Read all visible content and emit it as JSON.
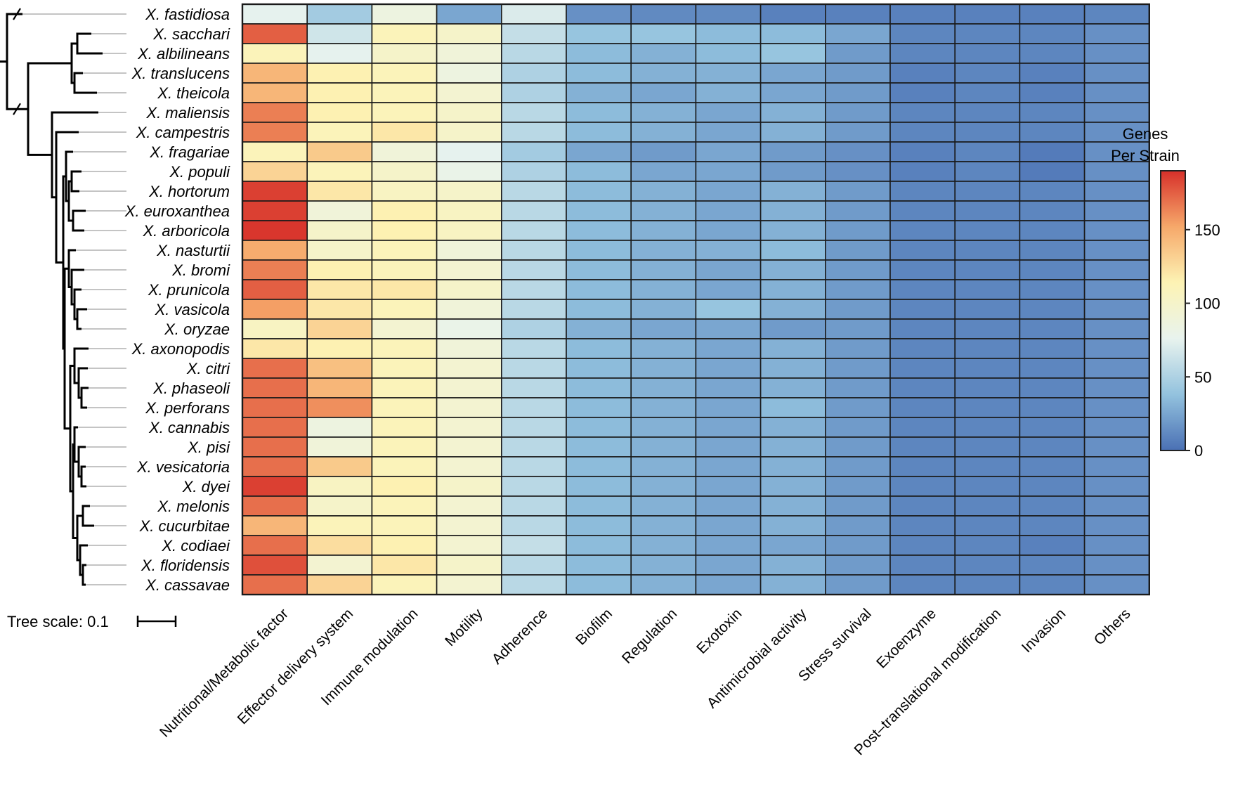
{
  "chart_data": {
    "type": "heatmap",
    "title": "",
    "legend": {
      "title_line1": "Genes",
      "title_line2": "Per Strain",
      "ticks": [
        0,
        50,
        100,
        150
      ],
      "range": [
        0,
        190
      ],
      "colors": [
        "#4a70b4",
        "#93c2de",
        "#e8f3ee",
        "#fdf3b4",
        "#f6a86a",
        "#d7302a"
      ]
    },
    "tree_scale_label": "Tree scale: 0.1",
    "columns": [
      "Nutritional/Metabolic factor",
      "Effector delivery system",
      "Immune modulation",
      "Motility",
      "Adherence",
      "Biofilm",
      "Regulation",
      "Exotoxin",
      "Antimicrobial activity",
      "Stress survival",
      "Exoenzyme",
      "Post–translational modification",
      "Invasion",
      "Others"
    ],
    "rows": [
      "X. fastidiosa",
      "X. sacchari",
      "X. albilineans",
      "X. translucens",
      "X. theicola",
      "X. maliensis",
      "X. campestris",
      "X. fragariae",
      "X. populi",
      "X. hortorum",
      "X. euroxanthea",
      "X. arboricola",
      "X. nasturtii",
      "X. bromi",
      "X. prunicola",
      "X. vasicola",
      "X. oryzae",
      "X. axonopodis",
      "X. citri",
      "X. phaseoli",
      "X. perforans",
      "X. cannabis",
      "X. pisi",
      "X. vesicatoria",
      "X. dyei",
      "X. melonis",
      "X. cucurbitae",
      "X. codiaei",
      "X. floridensis",
      "X. cassavae"
    ],
    "values": [
      [
        75,
        45,
        85,
        25,
        70,
        15,
        12,
        12,
        8,
        8,
        8,
        8,
        8,
        10
      ],
      [
        175,
        65,
        110,
        100,
        60,
        40,
        40,
        35,
        35,
        25,
        10,
        10,
        10,
        15
      ],
      [
        110,
        75,
        100,
        90,
        55,
        35,
        30,
        35,
        40,
        20,
        10,
        10,
        10,
        15
      ],
      [
        145,
        115,
        110,
        85,
        50,
        35,
        30,
        30,
        25,
        20,
        8,
        10,
        8,
        15
      ],
      [
        145,
        115,
        110,
        95,
        50,
        30,
        25,
        30,
        25,
        20,
        8,
        10,
        8,
        15
      ],
      [
        165,
        115,
        110,
        100,
        55,
        35,
        30,
        25,
        30,
        20,
        10,
        10,
        10,
        15
      ],
      [
        165,
        110,
        120,
        100,
        55,
        35,
        30,
        25,
        30,
        20,
        10,
        10,
        10,
        15
      ],
      [
        110,
        135,
        90,
        75,
        45,
        25,
        20,
        25,
        20,
        15,
        8,
        10,
        5,
        15
      ],
      [
        130,
        110,
        100,
        80,
        50,
        35,
        25,
        25,
        20,
        15,
        8,
        10,
        5,
        15
      ],
      [
        185,
        120,
        105,
        100,
        55,
        35,
        30,
        25,
        30,
        20,
        10,
        10,
        10,
        15
      ],
      [
        185,
        90,
        115,
        105,
        55,
        35,
        30,
        25,
        30,
        20,
        10,
        10,
        10,
        15
      ],
      [
        188,
        100,
        115,
        105,
        55,
        35,
        30,
        25,
        30,
        20,
        10,
        10,
        10,
        15
      ],
      [
        150,
        100,
        110,
        90,
        55,
        35,
        30,
        30,
        35,
        20,
        10,
        10,
        10,
        15
      ],
      [
        165,
        115,
        110,
        95,
        55,
        35,
        30,
        25,
        30,
        20,
        10,
        10,
        10,
        15
      ],
      [
        175,
        120,
        120,
        100,
        55,
        35,
        30,
        25,
        30,
        20,
        10,
        10,
        10,
        15
      ],
      [
        155,
        120,
        110,
        90,
        55,
        35,
        30,
        40,
        30,
        20,
        10,
        10,
        10,
        15
      ],
      [
        105,
        130,
        95,
        80,
        50,
        30,
        25,
        25,
        20,
        20,
        10,
        10,
        10,
        15
      ],
      [
        120,
        115,
        110,
        90,
        55,
        35,
        30,
        25,
        30,
        20,
        10,
        10,
        10,
        15
      ],
      [
        170,
        140,
        110,
        95,
        55,
        35,
        30,
        25,
        30,
        20,
        10,
        10,
        10,
        15
      ],
      [
        170,
        145,
        110,
        95,
        55,
        35,
        30,
        25,
        30,
        20,
        10,
        10,
        10,
        15
      ],
      [
        170,
        160,
        110,
        95,
        55,
        35,
        30,
        25,
        35,
        20,
        10,
        10,
        10,
        15
      ],
      [
        170,
        85,
        110,
        95,
        55,
        35,
        30,
        25,
        30,
        20,
        10,
        10,
        10,
        15
      ],
      [
        170,
        90,
        110,
        95,
        55,
        35,
        30,
        25,
        30,
        20,
        10,
        10,
        10,
        15
      ],
      [
        170,
        135,
        110,
        95,
        55,
        35,
        30,
        25,
        30,
        20,
        10,
        10,
        10,
        15
      ],
      [
        185,
        105,
        115,
        100,
        55,
        35,
        30,
        25,
        30,
        20,
        10,
        10,
        10,
        15
      ],
      [
        170,
        100,
        110,
        95,
        55,
        35,
        30,
        25,
        30,
        20,
        10,
        10,
        10,
        15
      ],
      [
        145,
        110,
        110,
        95,
        55,
        35,
        30,
        25,
        30,
        20,
        10,
        10,
        10,
        15
      ],
      [
        170,
        125,
        115,
        95,
        60,
        35,
        30,
        25,
        25,
        20,
        10,
        10,
        8,
        15
      ],
      [
        180,
        95,
        120,
        100,
        55,
        35,
        30,
        25,
        30,
        20,
        10,
        10,
        10,
        15
      ],
      [
        170,
        130,
        110,
        95,
        55,
        35,
        30,
        25,
        30,
        20,
        10,
        10,
        10,
        15
      ]
    ],
    "tree": {
      "leaf_order": [
        "X. fastidiosa",
        "X. sacchari",
        "X. albilineans",
        "X. translucens",
        "X. theicola",
        "X. maliensis",
        "X. campestris",
        "X. fragariae",
        "X. populi",
        "X. hortorum",
        "X. euroxanthea",
        "X. arboricola",
        "X. nasturtii",
        "X. bromi",
        "X. prunicola",
        "X. vasicola",
        "X. oryzae",
        "X. axonopodis",
        "X. citri",
        "X. phaseoli",
        "X. perforans",
        "X. cannabis",
        "X. pisi",
        "X. vesicatoria",
        "X. dyei",
        "X. melonis",
        "X. cucurbitae",
        "X. codiaei",
        "X. floridensis",
        "X. cassavae"
      ],
      "broken_branches": [
        "X. fastidiosa",
        "Xanthomonas clade"
      ]
    }
  }
}
